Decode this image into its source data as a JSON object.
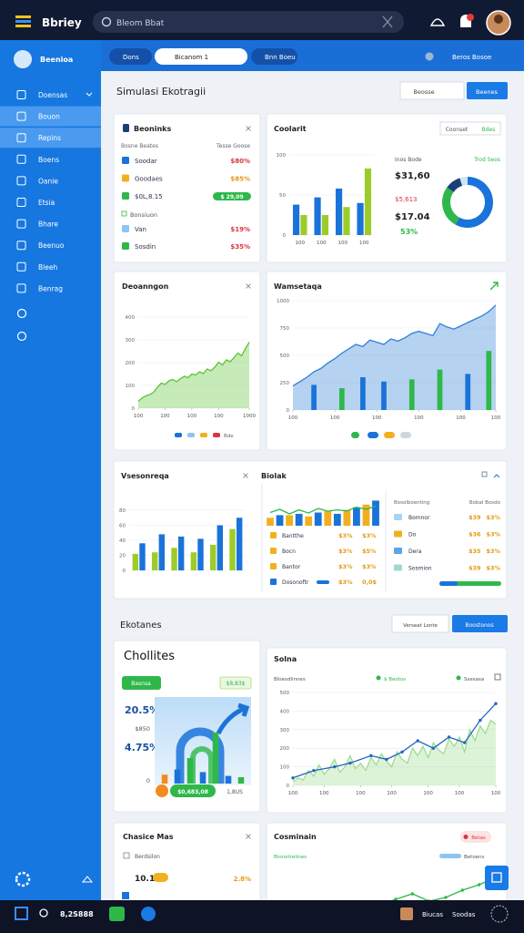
{
  "topbar": {
    "app_name": "Bbriey",
    "search": "Bleom Bbat"
  },
  "sidebar": {
    "header": "Beenioa",
    "items": [
      "Doensas",
      "Bouon",
      "Repins",
      "Boens",
      "Oanie",
      "Etsia",
      "Bhare",
      "Beenuo",
      "Bleeh",
      "Benrag"
    ],
    "active": [
      1,
      2
    ]
  },
  "tabs": {
    "items": [
      "Dons",
      "Bicanom 1",
      "Bnn Boeu"
    ],
    "right": "Beros Bosoe"
  },
  "section_1": {
    "title": "Simulasi Ekotragii",
    "buttons": [
      "Beosse",
      "Beenes"
    ]
  },
  "accounts": {
    "title": "Beoninks",
    "headers": [
      "Bosne Beates",
      "Tesse Goose"
    ],
    "rows": [
      {
        "label": "Soodar",
        "value": "$80%",
        "color": "#1a73d9",
        "value_color": "#d9363e",
        "badge": false
      },
      {
        "label": "Goodaes",
        "value": "$85%",
        "color": "#f2b01e",
        "value_color": "#e39b16",
        "badge": false
      },
      {
        "label": "$0L,8.15",
        "value": "$ 29,09",
        "color": "#2fb84a",
        "value_color": "#2fb84a",
        "badge": true
      }
    ],
    "group": "Bonsiuon",
    "group_rows": [
      {
        "label": "Van",
        "value": "$19%",
        "color": "#8fc3f0",
        "value_color": "#d9363e"
      },
      {
        "label": "Sosdin",
        "value": "$35%",
        "color": "#2fb84a",
        "value_color": "#d9363e"
      }
    ]
  },
  "coolarit": {
    "title": "Coolarit",
    "buttons": [
      "Coonset",
      "Bdes"
    ],
    "chart": {
      "xlim": [
        -0.5,
        3.5
      ],
      "ylim": [
        0,
        100
      ],
      "yticks": [
        0,
        50,
        100
      ],
      "categories": [
        "100",
        "100",
        "100",
        "100"
      ],
      "series": [
        {
          "type": "bar",
          "color": "#1a73d9",
          "values": [
            38,
            47,
            58,
            40
          ]
        },
        {
          "type": "bar",
          "color": "#9ccc2a",
          "values": [
            25,
            25,
            35,
            83
          ]
        }
      ]
    },
    "stats_headers": [
      "Inos Bode",
      "Trod Seos"
    ],
    "stats": [
      "$31,60",
      "$5,613",
      "$17.04",
      "53%"
    ],
    "donut": {
      "values": [
        58,
        27,
        10,
        5
      ],
      "colors": [
        "#1a73d9",
        "#2fb84a",
        "#1c3f7a",
        "#cfe3f7"
      ]
    }
  },
  "deoanngon": {
    "title": "Deoanngon",
    "chart": {
      "xlim": [
        0,
        29
      ],
      "ylim": [
        0,
        400
      ],
      "yticks": [
        0,
        100,
        200,
        300,
        400
      ],
      "xticks": [
        {
          "value": 0,
          "label": "100"
        },
        {
          "value": 7,
          "label": "100"
        },
        {
          "value": 14,
          "label": "100"
        },
        {
          "value": 21,
          "label": "100"
        },
        {
          "value": 29,
          "label": "1000"
        }
      ],
      "series": [
        {
          "type": "area",
          "color": "#5cc234",
          "values": [
            30,
            45,
            55,
            60,
            70,
            92,
            110,
            105,
            120,
            126,
            116,
            130,
            140,
            134,
            150,
            146,
            160,
            152,
            172,
            165,
            180,
            202,
            190,
            212,
            204,
            222,
            242,
            230,
            262,
            290
          ]
        }
      ]
    },
    "legend_colors": [
      "#1a73d9",
      "#8fc3f0",
      "#f2b01e",
      "#d9363e"
    ],
    "legend_label": "Bde"
  },
  "wamsetaqa": {
    "title": "Wamsetaqa",
    "chart": {
      "xlim": [
        0,
        29
      ],
      "ylim": [
        0,
        1000
      ],
      "yticks": [
        0,
        250,
        500,
        750,
        1000
      ],
      "xticks": [
        {
          "value": 0,
          "label": "100"
        },
        {
          "value": 6,
          "label": "100"
        },
        {
          "value": 12,
          "label": "100"
        },
        {
          "value": 18,
          "label": "100"
        },
        {
          "value": 24,
          "label": "100"
        },
        {
          "value": 29,
          "label": "100"
        }
      ],
      "series": [
        {
          "type": "area",
          "color": "#2f7fd8",
          "values": [
            220,
            260,
            300,
            350,
            380,
            430,
            470,
            520,
            560,
            600,
            580,
            640,
            620,
            600,
            650,
            630,
            660,
            700,
            720,
            700,
            680,
            790,
            760,
            740,
            770,
            800,
            830,
            860,
            900,
            960
          ]
        },
        {
          "type": "bar",
          "color": "#2fb84a",
          "x": [
            7,
            17,
            21,
            28
          ],
          "values": [
            200,
            280,
            370,
            540
          ]
        },
        {
          "type": "bar",
          "color": "#1a73d9",
          "x": [
            3,
            10,
            13,
            25
          ],
          "values": [
            230,
            300,
            260,
            330
          ]
        }
      ]
    },
    "legend_colors": [
      "#2fb84a",
      "#1a73d9",
      "#f2b01e",
      "#cfd6e0"
    ]
  },
  "vsesonreqa": {
    "title": "Vsesonreqa",
    "chart": {
      "xlim": [
        -0.5,
        5.5
      ],
      "ylim": [
        0,
        80
      ],
      "yticks": [
        0,
        20,
        40,
        60,
        80
      ],
      "series": [
        {
          "type": "bar",
          "color": "#9ccc2a",
          "values": [
            22,
            24,
            30,
            24,
            34,
            55
          ]
        },
        {
          "type": "bar",
          "color": "#1a73d9",
          "values": [
            36,
            48,
            45,
            42,
            60,
            70
          ]
        }
      ]
    }
  },
  "biolak": {
    "title": "Biolak",
    "chart": {
      "xlim": [
        0,
        11
      ],
      "ylim": [
        0,
        100
      ],
      "series": [
        {
          "type": "bar",
          "color": "#f2b01e",
          "x": [
            0,
            2,
            4,
            6,
            8,
            10
          ],
          "values": [
            30,
            40,
            35,
            55,
            60,
            80
          ]
        },
        {
          "type": "bar",
          "color": "#1a73d9",
          "x": [
            1,
            3,
            5,
            7,
            9,
            11
          ],
          "values": [
            40,
            45,
            50,
            45,
            70,
            95
          ]
        },
        {
          "type": "line",
          "color": "#2fb84a",
          "values": [
            50,
            62,
            45,
            60,
            48,
            65,
            55,
            60,
            56,
            70,
            62,
            75
          ]
        }
      ]
    },
    "rows": [
      {
        "label": "Bantthe",
        "values": [
          "$3%",
          "$3%"
        ],
        "color": "#f2b01e"
      },
      {
        "label": "Bocn",
        "values": [
          "$3%",
          "$5%"
        ],
        "color": "#f2b01e"
      },
      {
        "label": "Bantor",
        "values": [
          "$3%",
          "$3%"
        ],
        "color": "#f2b01e"
      },
      {
        "label": "Dosonoftr",
        "values": [
          "$3%",
          "0,0$"
        ],
        "color": "#1a73d9"
      }
    ]
  },
  "table": {
    "headers": [
      "Bosolboenting",
      "Bobal Bosdo"
    ],
    "rows": [
      {
        "label": "Bomnor",
        "values": [
          "$39",
          "$3%"
        ],
        "color": "#a9d3f2"
      },
      {
        "label": "Do",
        "values": [
          "$36",
          "$3%"
        ],
        "color": "#f2b01e"
      },
      {
        "label": "Dera",
        "values": [
          "$35",
          "$3%"
        ],
        "color": "#5aa6e8"
      },
      {
        "label": "Sosmion",
        "values": [
          "$39",
          "$3%"
        ],
        "color": "#9fd8d0"
      }
    ]
  },
  "section_2": {
    "title": "Ekotanes",
    "buttons": [
      "Verseat Lonte",
      "Boostonos"
    ]
  },
  "chollites": {
    "title": "Chollites",
    "badge": "Basnsa",
    "badge_right": "$8,83$",
    "kpis": [
      "20.5%",
      "4.75%"
    ],
    "axis_labels": [
      "$850",
      "0"
    ],
    "chart": {
      "xlim": [
        -0.5,
        6.5
      ],
      "ylim": [
        0,
        100
      ],
      "series": [
        {
          "type": "bar",
          "color": "#2fb84a",
          "colors": [
            "#f28c1e",
            "#1a73d9",
            "#2fb84a",
            "#1a73d9",
            "#2fb84a",
            "#1a73d9",
            "#2fb84a"
          ],
          "values": [
            14,
            22,
            40,
            18,
            80,
            12,
            10
          ]
        }
      ]
    },
    "chip": "$0,683,08",
    "chip_right": "1,8US"
  },
  "solna": {
    "title": "Solna",
    "legend": "Bloesdlinnes",
    "legend_items": [
      {
        "label": "$ Beotos",
        "color": "#2fb84a"
      },
      {
        "label": "Ssesasa",
        "color": "#2fb84a"
      }
    ],
    "chart": {
      "xlim": [
        0,
        39
      ],
      "ylim": [
        0,
        500
      ],
      "yticks": [
        0,
        100,
        200,
        300,
        400,
        500
      ],
      "xticks": [
        {
          "value": 0,
          "label": "100"
        },
        {
          "value": 6,
          "label": "100"
        },
        {
          "value": 13,
          "label": "100"
        },
        {
          "value": 19,
          "label": "100"
        },
        {
          "value": 26,
          "label": "100"
        },
        {
          "value": 32,
          "label": "100"
        },
        {
          "value": 39,
          "label": "100"
        }
      ],
      "series": [
        {
          "type": "area",
          "color": "#9fdc8f",
          "values": [
            20,
            40,
            30,
            80,
            50,
            110,
            60,
            90,
            140,
            70,
            100,
            160,
            90,
            120,
            80,
            150,
            110,
            170,
            130,
            100,
            180,
            140,
            120,
            200,
            160,
            210,
            150,
            230,
            190,
            170,
            250,
            210,
            260,
            180,
            300,
            240,
            320,
            280,
            350,
            330
          ]
        },
        {
          "type": "line",
          "color": "#2266c4",
          "x": [
            0,
            4,
            8,
            11,
            15,
            18,
            21,
            24,
            27,
            30,
            33,
            36,
            39
          ],
          "values": [
            40,
            80,
            100,
            120,
            160,
            140,
            180,
            240,
            200,
            260,
            230,
            350,
            440
          ]
        }
      ]
    }
  },
  "chasice": {
    "title": "Chasice Mas",
    "subtitle": "Berdsilon",
    "value": "10.10",
    "change": "2.8%"
  },
  "cosminain": {
    "title": "Cosminain",
    "chip": "Betas",
    "legend": "Bionetrelines",
    "legend_right": "Betoens",
    "chart": {
      "xlim": [
        0,
        9
      ],
      "ylim": [
        0,
        100
      ],
      "series": [
        {
          "type": "line",
          "color": "#2fb84a",
          "x": [
            0,
            1,
            2,
            3,
            4,
            5,
            6,
            7,
            8,
            9
          ],
          "values": [
            0,
            5,
            2,
            20,
            35,
            15,
            25,
            45,
            60,
            80
          ]
        }
      ]
    }
  },
  "bottombar": {
    "left": "8,2S888",
    "right": [
      "Biucas",
      "Soodas"
    ]
  }
}
